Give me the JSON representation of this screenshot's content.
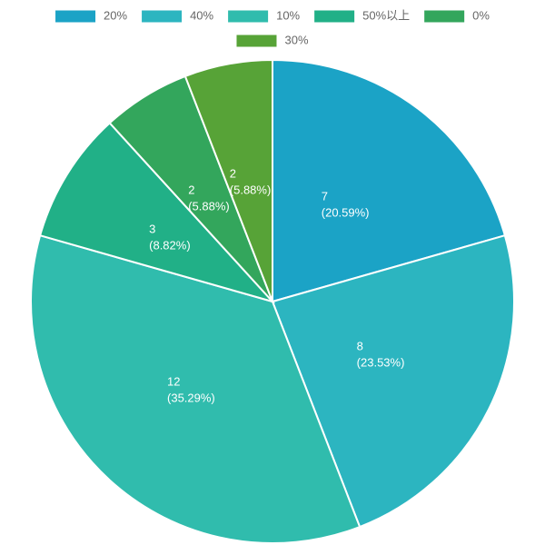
{
  "chart_data": {
    "type": "pie",
    "categories": [
      "20%",
      "40%",
      "10%",
      "50%以上",
      "0%",
      "30%"
    ],
    "values": [
      7,
      8,
      12,
      3,
      2,
      2
    ],
    "percent_labels": [
      "(20.59%)",
      "(23.53%)",
      "(35.29%)",
      "(8.82%)",
      "(5.88%)",
      "(5.88%)"
    ],
    "colors": [
      "#1ba3c6",
      "#2cb5c0",
      "#30bcad",
      "#21b087",
      "#33a65c",
      "#57a337"
    ],
    "legend": "top"
  }
}
